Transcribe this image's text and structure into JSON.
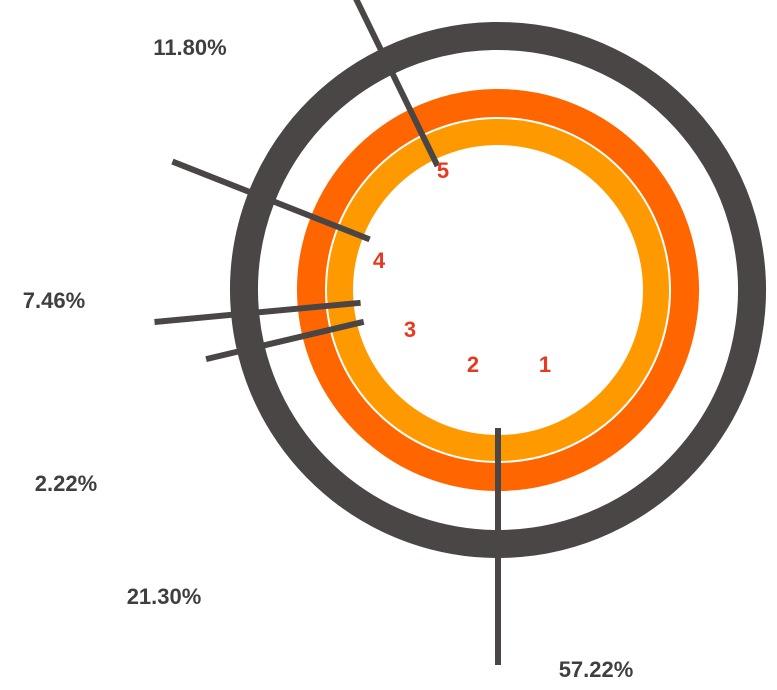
{
  "chart_data": {
    "type": "pie",
    "variant": "concentric-rings",
    "segments": [
      {
        "number_label": "1",
        "value": 57.22,
        "percent_label": "57.22%"
      },
      {
        "number_label": "2",
        "value": 21.3,
        "percent_label": "21.30%"
      },
      {
        "number_label": "3",
        "value": 2.22,
        "percent_label": "2.22%"
      },
      {
        "number_label": "4",
        "value": 7.46,
        "percent_label": "7.46%"
      },
      {
        "number_label": "5",
        "value": 11.8,
        "percent_label": "11.80%"
      }
    ],
    "rings": [
      {
        "color": "#4a4646"
      },
      {
        "color": "#ff6600"
      },
      {
        "color": "#ff9900"
      }
    ],
    "leader_line_color": "#4a4646",
    "segment_number_color": "#e8381e",
    "percent_label_color": "#3f3f3f",
    "legend": "none",
    "grid": false
  }
}
